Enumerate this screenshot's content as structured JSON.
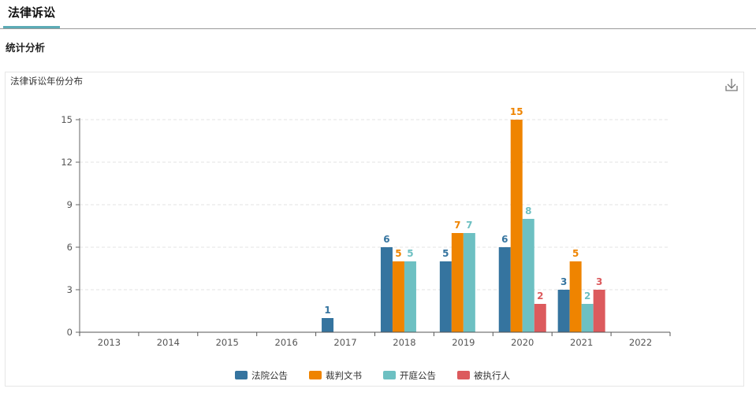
{
  "header": {
    "tab_label": "法律诉讼"
  },
  "section": {
    "title": "统计分析"
  },
  "chart": {
    "download_icon": "download-icon"
  },
  "chart_data": {
    "type": "bar",
    "title": "法律诉讼年份分布",
    "categories": [
      "2013",
      "2014",
      "2015",
      "2016",
      "2017",
      "2018",
      "2019",
      "2020",
      "2021",
      "2022"
    ],
    "series": [
      {
        "name": "法院公告",
        "color": "#35749f",
        "values": [
          0,
          0,
          0,
          0,
          1,
          6,
          5,
          6,
          3,
          0
        ]
      },
      {
        "name": "裁判文书",
        "color": "#ef8400",
        "values": [
          0,
          0,
          0,
          0,
          0,
          5,
          7,
          15,
          5,
          0
        ]
      },
      {
        "name": "开庭公告",
        "color": "#6dc0c2",
        "values": [
          0,
          0,
          0,
          0,
          0,
          5,
          7,
          8,
          2,
          0
        ]
      },
      {
        "name": "被执行人",
        "color": "#dc5a5d",
        "values": [
          0,
          0,
          0,
          0,
          0,
          0,
          0,
          2,
          3,
          0
        ]
      }
    ],
    "y_ticks": [
      0,
      3,
      6,
      9,
      12,
      15
    ],
    "ylim": [
      0,
      15
    ],
    "grid": true,
    "legend_position": "bottom-center"
  }
}
